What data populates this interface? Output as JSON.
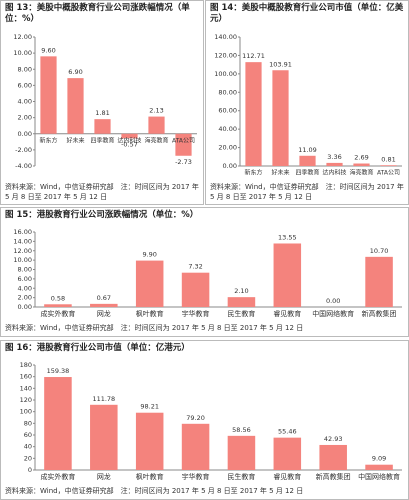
{
  "chart_data": [
    {
      "type": "bar",
      "title": "图 13：美股中概股教育行业公司涨跌幅情况（单位：%）",
      "categories": [
        "新东方",
        "好未来",
        "四季教育",
        "达内科技",
        "海亮教育",
        "ATA公司"
      ],
      "values": [
        9.6,
        6.9,
        1.81,
        -0.57,
        2.13,
        -2.73
      ],
      "value_labels": [
        "9.60",
        "6.90",
        "1.81",
        "-0.57",
        "2.13",
        "-2.73"
      ],
      "color": "#f4837d",
      "ylim": [
        -4,
        12
      ],
      "yticks": [
        {
          "value": -4,
          "label": "-4.00"
        },
        {
          "value": -2,
          "label": "-2.00"
        },
        {
          "value": 0,
          "label": "0.00"
        },
        {
          "value": 2,
          "label": "2.00"
        },
        {
          "value": 4,
          "label": "4.00"
        },
        {
          "value": 6,
          "label": "6.00"
        },
        {
          "value": 8,
          "label": "8.00"
        },
        {
          "value": 10,
          "label": "10.00"
        },
        {
          "value": 12,
          "label": "12.00"
        }
      ],
      "source": "资料来源：Wind，中信证券研究部　注：时间区间为 2017 年 5 月 8 日至 2017 年 5 月 12 日"
    },
    {
      "type": "bar",
      "title": "图 14：美股中概股教育行业公司市值（单位：亿美元）",
      "categories": [
        "新东方",
        "好未来",
        "四季教育",
        "达内科技",
        "海亮教育",
        "ATA公司"
      ],
      "values": [
        112.71,
        103.91,
        11.09,
        3.36,
        2.69,
        0.81
      ],
      "value_labels": [
        "112.71",
        "103.91",
        "11.09",
        "3.36",
        "2.69",
        "0.81"
      ],
      "color": "#f4837d",
      "ylim": [
        0,
        140
      ],
      "yticks": [
        {
          "value": 0,
          "label": "0.00"
        },
        {
          "value": 20,
          "label": "20.00"
        },
        {
          "value": 40,
          "label": "40.00"
        },
        {
          "value": 60,
          "label": "60.00"
        },
        {
          "value": 80,
          "label": "80.00"
        },
        {
          "value": 100,
          "label": "100.00"
        },
        {
          "value": 120,
          "label": "120.00"
        },
        {
          "value": 140,
          "label": "140.00"
        }
      ],
      "source": "资料来源：Wind，中信证券研究部　注：时间区间为 2017 年 5 月 8 日至 2017 年 5 月 12 日"
    },
    {
      "type": "bar",
      "title": "图 15：港股教育行业公司涨跌幅情况（单位：%）",
      "categories": [
        "成实外教育",
        "网龙",
        "枫叶教育",
        "宇华教育",
        "民生教育",
        "睿见教育",
        "中国网络教育",
        "新高教集团"
      ],
      "values": [
        0.58,
        0.67,
        9.9,
        7.32,
        2.1,
        13.55,
        0,
        10.7
      ],
      "value_labels": [
        "0.58",
        "0.67",
        "9.90",
        "7.32",
        "2.10",
        "13.55",
        "0.00",
        "10.70"
      ],
      "color": "#f4837d",
      "ylim": [
        0,
        16
      ],
      "yticks": [
        {
          "value": 0,
          "label": "0.00"
        },
        {
          "value": 2,
          "label": "2.00"
        },
        {
          "value": 4,
          "label": "4.00"
        },
        {
          "value": 6,
          "label": "6.00"
        },
        {
          "value": 8,
          "label": "8.00"
        },
        {
          "value": 10,
          "label": "10.00"
        },
        {
          "value": 12,
          "label": "12.00"
        },
        {
          "value": 14,
          "label": "14.00"
        },
        {
          "value": 16,
          "label": "16.00"
        }
      ],
      "source": "资料来源：Wind，中信证券研究部　注：时间区间为 2017 年 5 月 8 日至 2017 年 5 月 12 日"
    },
    {
      "type": "bar",
      "title": "图 16：港股教育行业公司市值（单位：亿港元）",
      "categories": [
        "成实外教育",
        "网龙",
        "枫叶教育",
        "宇华教育",
        "民生教育",
        "睿见教育",
        "新高教集团",
        "中国网络教育"
      ],
      "values": [
        159.38,
        111.78,
        98.21,
        79.2,
        58.56,
        55.46,
        42.93,
        9.09
      ],
      "value_labels": [
        "159.38",
        "111.78",
        "98.21",
        "79.20",
        "58.56",
        "55.46",
        "42.93",
        "9.09"
      ],
      "color": "#f4837d",
      "ylim": [
        0,
        180
      ],
      "yticks": [
        0,
        20,
        40,
        60,
        80,
        100,
        120,
        140,
        160,
        180
      ],
      "source": "资料来源：Wind，中信证券研究部　注：时间区间为 2017 年 5 月 8 日至 2017 年 5 月 12 日"
    }
  ]
}
